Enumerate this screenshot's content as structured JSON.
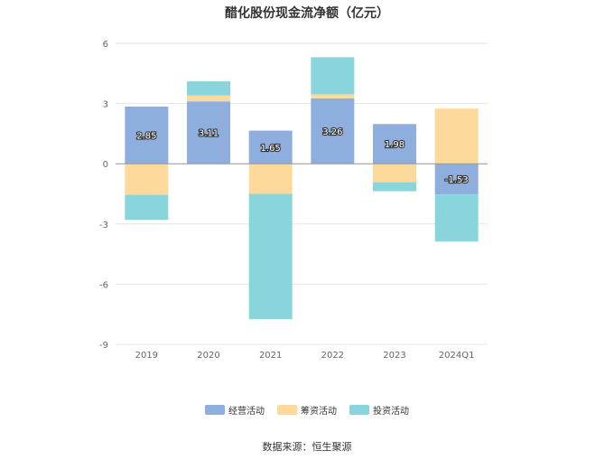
{
  "title": "醋化股份现金流净额（亿元）",
  "source": "数据来源：恒生聚源",
  "chart_data": {
    "type": "bar",
    "stacked": true,
    "categories": [
      "2019",
      "2020",
      "2021",
      "2022",
      "2023",
      "2024Q1"
    ],
    "series": [
      {
        "name": "经营活动",
        "color": "#8eaedd",
        "values": [
          2.85,
          3.11,
          1.65,
          3.26,
          1.98,
          -1.53
        ],
        "labels": [
          "2.85",
          "3.11",
          "1.65",
          "3.26",
          "1.98",
          "-1.53"
        ]
      },
      {
        "name": "筹资活动",
        "color": "#fdd99b",
        "values": [
          -1.55,
          0.3,
          -1.5,
          0.2,
          -0.92,
          2.75
        ]
      },
      {
        "name": "投资活动",
        "color": "#88d6db",
        "values": [
          -1.25,
          0.7,
          -6.25,
          1.85,
          -0.45,
          -2.35
        ]
      }
    ],
    "ylim": [
      -9,
      6
    ],
    "yticks": [
      "-9",
      "-6",
      "-3",
      "0",
      "3",
      "6"
    ],
    "grid": true,
    "legend_position": "bottom"
  }
}
